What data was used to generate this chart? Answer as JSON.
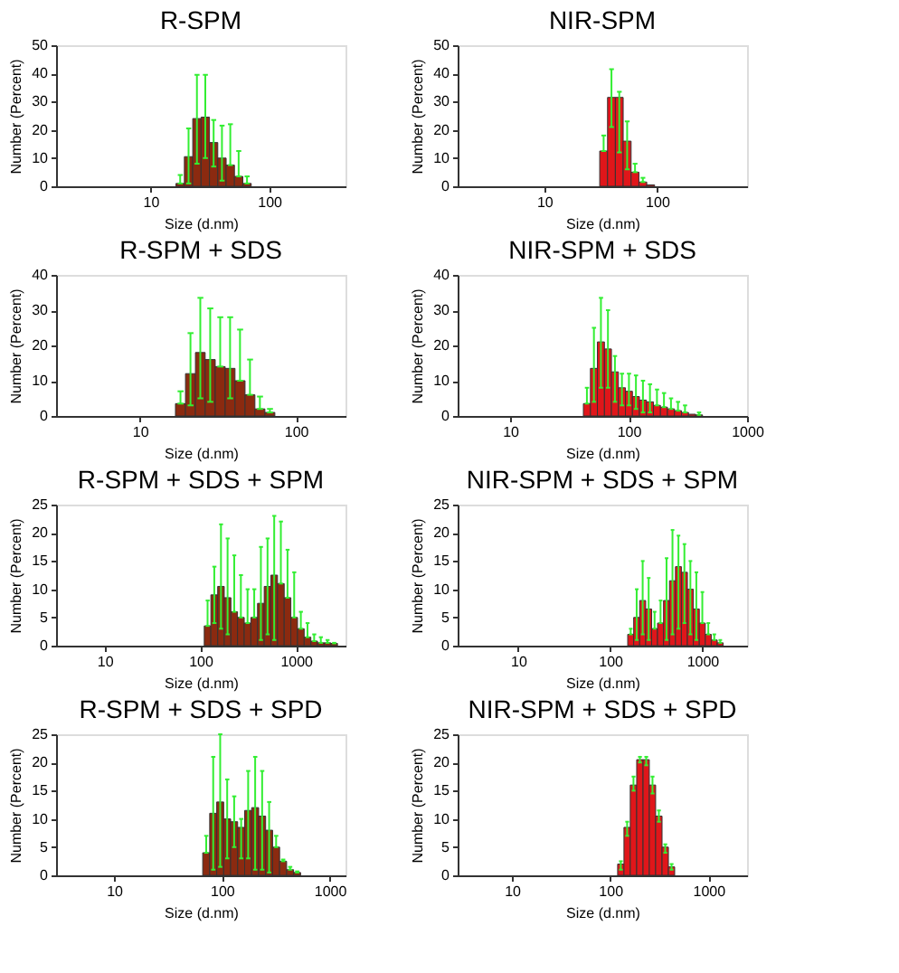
{
  "chart_data": [
    {
      "type": "histogram",
      "title": "R-SPM",
      "xlabel": "Size (d.nm)",
      "ylabel": "Number (Percent)",
      "log": "x",
      "color": "#8b2a10",
      "xlim": [
        1.6,
        440
      ],
      "xticks": [
        10,
        100
      ],
      "ylim": [
        0,
        50
      ],
      "yticks": [
        0,
        10,
        20,
        30,
        40,
        50
      ],
      "bins": [
        16.4,
        19.3,
        22.7,
        26.7,
        31.4,
        36.9,
        43.4,
        51.0,
        60.0,
        70.6
      ],
      "values": [
        1,
        10.5,
        24,
        24.5,
        15.5,
        10,
        7.5,
        3.5,
        1
      ],
      "errors": [
        [
          1,
          4
        ],
        [
          1,
          20.5
        ],
        [
          8,
          39.5
        ],
        [
          10,
          39.5
        ],
        [
          7,
          23.5
        ],
        [
          2,
          21.5
        ],
        [
          7.5,
          22
        ],
        [
          3.5,
          12.5
        ],
        [
          1,
          3.5
        ]
      ]
    },
    {
      "type": "histogram",
      "title": "NIR-SPM",
      "xlabel": "Size (d.nm)",
      "ylabel": "Number (Percent)",
      "log": "x",
      "color": "#e0161a",
      "xlim": [
        1.7,
        630
      ],
      "xticks": [
        10,
        100
      ],
      "ylim": [
        0,
        50
      ],
      "yticks": [
        0,
        10,
        20,
        30,
        40,
        50
      ],
      "bins": [
        31.0,
        36.4,
        42.7,
        50.1,
        58.9,
        69.1,
        81.1,
        95.2
      ],
      "values": [
        12.5,
        31.5,
        31.5,
        16,
        5,
        1.5,
        0.5
      ],
      "errors": [
        [
          12.5,
          18
        ],
        [
          21,
          41.5
        ],
        [
          12,
          33.5
        ],
        [
          6,
          23
        ],
        [
          5,
          8
        ],
        [
          1.5,
          3
        ],
        null
      ]
    },
    {
      "type": "histogram",
      "title": "R-SPM + SDS",
      "xlabel": "Size (d.nm)",
      "ylabel": "Number (Percent)",
      "log": "x",
      "color": "#8b2a10",
      "xlim": [
        2.9,
        208
      ],
      "xticks": [
        10,
        100
      ],
      "ylim": [
        0,
        40
      ],
      "yticks": [
        0,
        10,
        20,
        30,
        40
      ],
      "bins": [
        16.9,
        19.6,
        22.7,
        26.2,
        30.4,
        35.2,
        40.7,
        47.2,
        54.6,
        63.3,
        73.3
      ],
      "values": [
        3.5,
        12,
        18,
        16,
        14,
        13.5,
        10,
        6,
        2,
        1
      ],
      "errors": [
        [
          3.5,
          7
        ],
        [
          3,
          23.5
        ],
        [
          5,
          33.5
        ],
        [
          4,
          30.5
        ],
        [
          14,
          28
        ],
        [
          5,
          28
        ],
        [
          10,
          24.5
        ],
        [
          6,
          16
        ],
        [
          2,
          5.5
        ],
        [
          1,
          2
        ]
      ]
    },
    {
      "type": "histogram",
      "title": "NIR-SPM + SDS",
      "xlabel": "Size (d.nm)",
      "ylabel": "Number (Percent)",
      "log": "x",
      "color": "#e0161a",
      "xlim": [
        3.6,
        1000
      ],
      "xticks": [
        10,
        100,
        1000
      ],
      "ylim": [
        0,
        40
      ],
      "yticks": [
        0,
        10,
        20,
        30,
        40
      ],
      "bins": [
        41.5,
        47.6,
        54.5,
        62.5,
        71.6,
        82.0,
        94.0,
        107.7,
        123.4,
        141.4,
        162.1,
        185.7,
        212.8,
        243.9,
        279.5,
        320.3,
        367.0,
        420.6
      ],
      "values": [
        3.5,
        13.5,
        21,
        19,
        12.5,
        8,
        7,
        5.5,
        4.5,
        4,
        3,
        2.5,
        2,
        1.5,
        1,
        0.5,
        0.3
      ],
      "errors": [
        [
          3.5,
          8
        ],
        [
          4,
          25
        ],
        [
          8,
          33.5
        ],
        [
          8,
          30
        ],
        [
          4,
          17
        ],
        [
          3,
          12
        ],
        [
          3,
          12
        ],
        [
          2,
          11.5
        ],
        [
          1,
          10
        ],
        [
          1,
          9
        ],
        [
          3,
          7.5
        ],
        [
          2.5,
          6.5
        ],
        [
          2,
          5
        ],
        [
          1.5,
          4
        ],
        [
          1,
          3
        ],
        null,
        [
          0.3,
          1
        ]
      ]
    },
    {
      "type": "histogram",
      "title": "R-SPM + SDS + SPM",
      "xlabel": "Size (d.nm)",
      "ylabel": "Number (Percent)",
      "log": "x",
      "color": "#8b2a10",
      "xlim": [
        3.1,
        3300
      ],
      "xticks": [
        10,
        100,
        1000
      ],
      "ylim": [
        0,
        25
      ],
      "yticks": [
        0,
        5,
        10,
        15,
        20,
        25
      ],
      "bins": [
        110,
        129,
        152,
        178,
        209,
        245,
        288,
        338,
        397,
        466,
        547,
        642,
        754,
        885,
        1039,
        1220,
        1432,
        1681,
        1974,
        2317,
        2720
      ],
      "values": [
        3.5,
        9,
        10.5,
        8.5,
        6,
        5,
        4,
        5,
        7.5,
        10.5,
        12.5,
        11,
        8.5,
        5,
        3,
        1.5,
        0.8,
        0.5,
        0.5,
        0.4
      ],
      "errors": [
        [
          3.5,
          8
        ],
        [
          4,
          14
        ],
        [
          3,
          21.5
        ],
        [
          2,
          19
        ],
        [
          6,
          16
        ],
        [
          5,
          12.5
        ],
        [
          4,
          10
        ],
        [
          5,
          10
        ],
        [
          1,
          17.5
        ],
        [
          2,
          19
        ],
        [
          1,
          23
        ],
        [
          11,
          22
        ],
        [
          8.5,
          17
        ],
        [
          5,
          13
        ],
        [
          3,
          6
        ],
        [
          1.5,
          4
        ],
        [
          0.8,
          2
        ],
        [
          0.5,
          1.5
        ],
        [
          0.5,
          1
        ],
        [
          0.4,
          0.5
        ]
      ]
    },
    {
      "type": "histogram",
      "title": "NIR-SPM + SDS + SPM",
      "xlabel": "Size (d.nm)",
      "ylabel": "Number (Percent)",
      "log": "x",
      "color": "#e0161a",
      "xlim": [
        2.2,
        3070
      ],
      "xticks": [
        10,
        100,
        1000
      ],
      "ylim": [
        0,
        25
      ],
      "yticks": [
        0,
        5,
        10,
        15,
        20,
        25
      ],
      "bins": [
        155,
        180,
        209,
        243,
        282,
        327,
        380,
        441,
        512,
        594,
        690,
        801,
        930,
        1080,
        1254,
        1456,
        1690
      ],
      "values": [
        2,
        5,
        8,
        6.5,
        3,
        4,
        8,
        11.5,
        14,
        13,
        10,
        6.5,
        4,
        2,
        1,
        0.5
      ],
      "errors": [
        [
          2,
          3
        ],
        [
          1,
          10
        ],
        [
          2,
          15
        ],
        [
          1,
          12
        ],
        [
          3,
          6
        ],
        [
          4,
          8
        ],
        [
          1,
          15.5
        ],
        [
          2,
          20.5
        ],
        [
          3,
          19.5
        ],
        [
          4,
          18
        ],
        [
          2,
          15
        ],
        [
          1,
          13
        ],
        [
          4,
          9.5
        ],
        [
          2,
          4
        ],
        [
          1,
          2
        ],
        [
          0.5,
          1
        ]
      ]
    },
    {
      "type": "histogram",
      "title": "R-SPM + SDS + SPD",
      "xlabel": "Size (d.nm)",
      "ylabel": "Number (Percent)",
      "log": "x",
      "color": "#8b2a10",
      "xlim": [
        2.9,
        1400
      ],
      "xticks": [
        10,
        100,
        1000
      ],
      "ylim": [
        0,
        25
      ],
      "yticks": [
        0,
        5,
        10,
        15,
        20,
        25
      ],
      "bins": [
        66.4,
        77.1,
        89.5,
        103.9,
        120.6,
        140.0,
        162.6,
        188.8,
        219.2,
        254.5,
        295.4,
        343.0,
        398.2,
        462.3,
        536.7
      ],
      "values": [
        4,
        11,
        13,
        10,
        9.5,
        8.5,
        11.5,
        12,
        10.5,
        8,
        5,
        2.5,
        1,
        0.5
      ],
      "errors": [
        [
          4,
          7
        ],
        [
          1,
          21
        ],
        [
          1.5,
          25
        ],
        [
          3,
          17
        ],
        [
          5,
          14
        ],
        [
          3,
          10
        ],
        [
          3,
          18.5
        ],
        [
          1,
          21
        ],
        [
          1,
          18.5
        ],
        [
          0.5,
          13
        ],
        [
          5,
          7
        ],
        [
          2.5,
          2.8
        ],
        [
          1,
          1.5
        ],
        [
          0.5,
          0.7
        ]
      ]
    },
    {
      "type": "histogram",
      "title": "NIR-SPM + SDS + SPD",
      "xlabel": "Size (d.nm)",
      "ylabel": "Number (Percent)",
      "log": "x",
      "color": "#e0161a",
      "xlim": [
        2.8,
        2470
      ],
      "xticks": [
        10,
        100,
        1000
      ],
      "ylim": [
        0,
        25
      ],
      "yticks": [
        0,
        5,
        10,
        15,
        20,
        25
      ],
      "bins": [
        119,
        138,
        160,
        186,
        216,
        250,
        290,
        337,
        391,
        453
      ],
      "values": [
        2,
        8.5,
        16,
        20.5,
        20.5,
        16,
        10.5,
        5,
        1.5
      ],
      "errors": [
        [
          1,
          2.5
        ],
        [
          7,
          9.5
        ],
        [
          15,
          17.5
        ],
        [
          20,
          21
        ],
        [
          19.5,
          21
        ],
        [
          14.5,
          17.5
        ],
        [
          9.5,
          11.5
        ],
        [
          4,
          5.5
        ],
        [
          1,
          2
        ]
      ]
    }
  ]
}
